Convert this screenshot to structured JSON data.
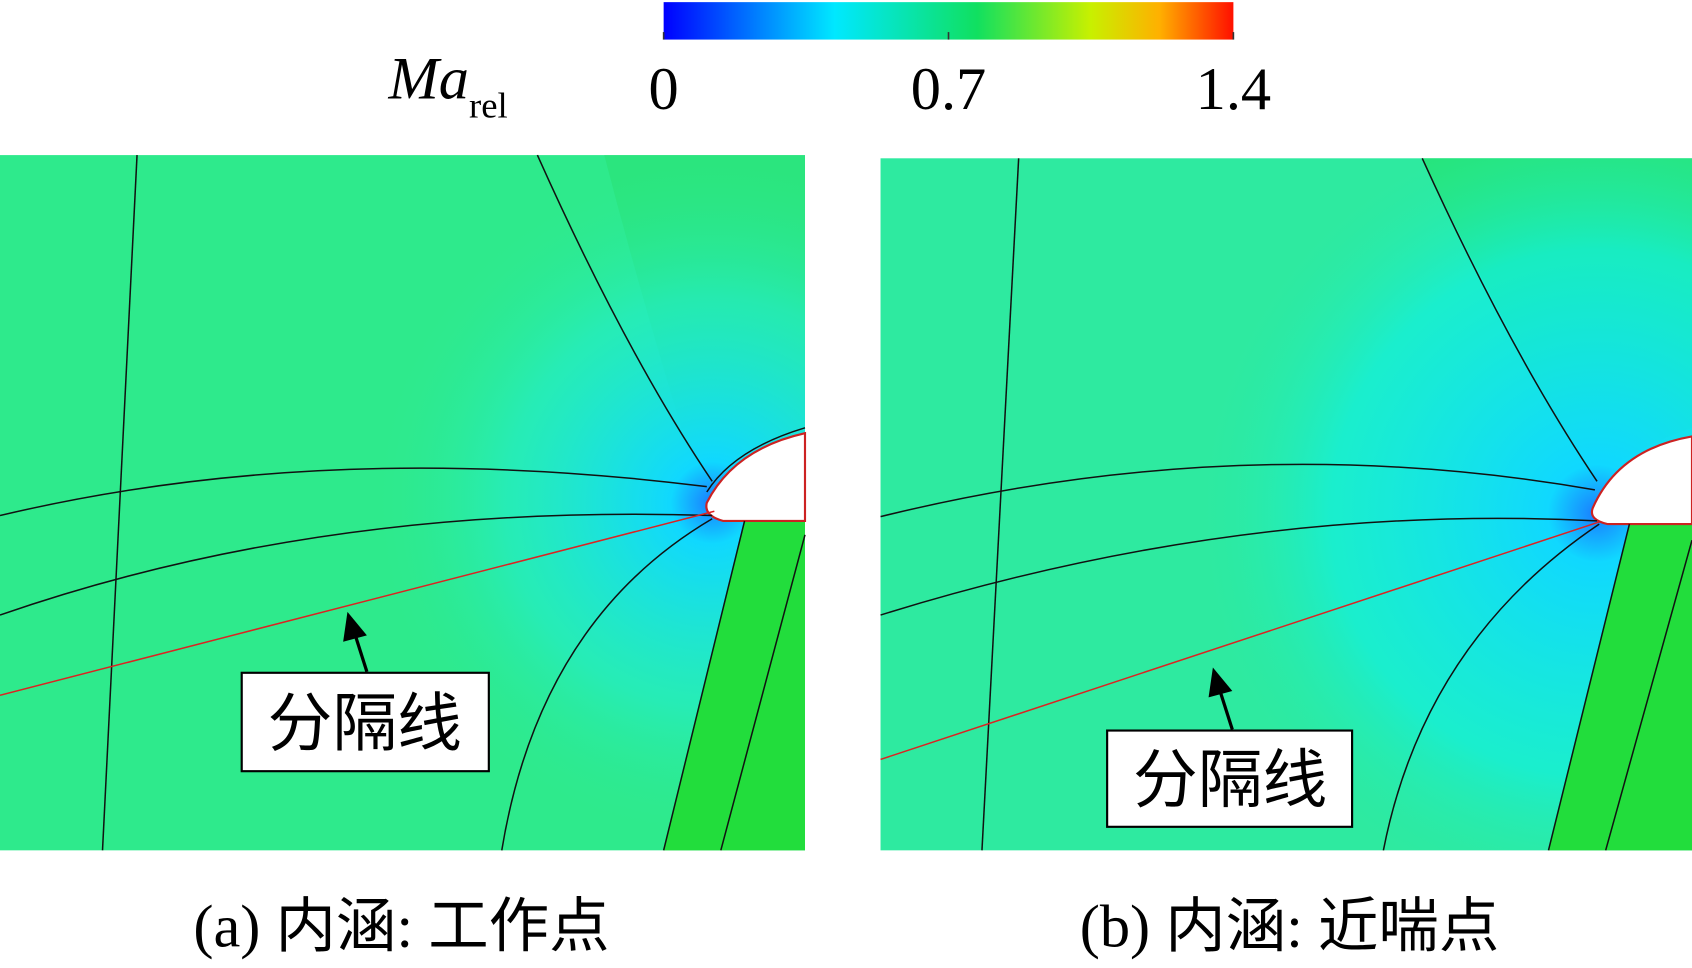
{
  "colorbar": {
    "label": "Ma",
    "subscript": "rel",
    "ticks": [
      0,
      0.7,
      1.4
    ]
  },
  "panels": [
    {
      "annotation": "分隔线",
      "caption": "(a) 内涵: 工作点"
    },
    {
      "annotation": "分隔线",
      "caption": "(b) 内涵: 近喘点"
    }
  ]
}
